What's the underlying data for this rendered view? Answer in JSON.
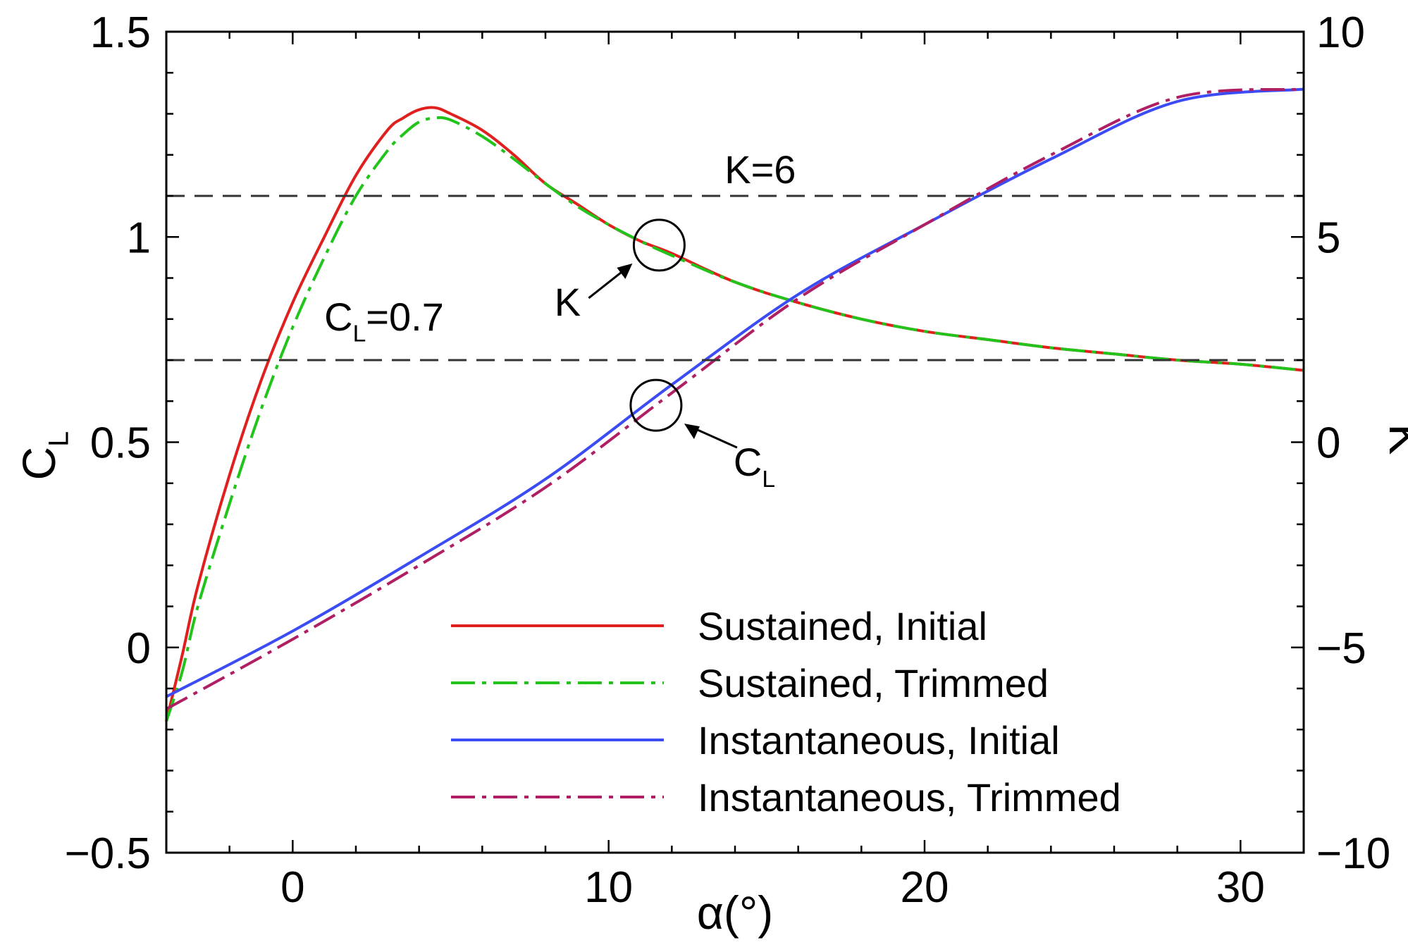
{
  "chart_data": {
    "type": "line",
    "title": "",
    "xlabel": "α(°)",
    "ylabel_left": {
      "main": "C",
      "sub": "L"
    },
    "ylabel_right": "K",
    "xlim": [
      -4,
      32
    ],
    "ylim_left": [
      -0.5,
      1.5
    ],
    "ylim_right": [
      -10,
      10
    ],
    "xticks": [
      0,
      10,
      20,
      30
    ],
    "xtick_labels": [
      "0",
      "10",
      "20",
      "30"
    ],
    "yticks_left": [
      -0.5,
      0,
      0.5,
      1,
      1.5
    ],
    "ytick_labels_left": [
      "−0.5",
      "0",
      "0.5",
      "1",
      "1.5"
    ],
    "yticks_right": [
      -10,
      -5,
      0,
      5,
      10
    ],
    "ytick_labels_right": [
      "−10",
      "−5",
      "0",
      "5",
      "10"
    ],
    "grid": false,
    "legend_position": "bottom-right",
    "series": [
      {
        "name": "Sustained, Initial",
        "axis": "right",
        "color": "#e0201e",
        "dash": "solid",
        "x": [
          -4,
          -3.5,
          -3,
          -2,
          -1,
          0,
          1,
          2,
          3,
          3.5,
          4,
          4.5,
          5,
          6,
          7,
          8,
          9,
          10,
          11,
          12,
          14,
          16,
          18,
          20,
          22,
          24,
          26,
          28,
          30,
          32
        ],
        "y": [
          -6.8,
          -5.2,
          -3.5,
          -0.8,
          1.5,
          3.4,
          5.0,
          6.5,
          7.6,
          7.9,
          8.1,
          8.15,
          8.0,
          7.6,
          7.0,
          6.3,
          5.8,
          5.3,
          4.9,
          4.6,
          3.9,
          3.4,
          3.0,
          2.7,
          2.5,
          2.3,
          2.15,
          2.0,
          1.9,
          1.75
        ]
      },
      {
        "name": "Sustained, Trimmed",
        "axis": "right",
        "color": "#22c41c",
        "dash": "dashdot",
        "x": [
          -4,
          -3.5,
          -3,
          -2,
          -1,
          0,
          1,
          2,
          3,
          3.5,
          4,
          4.5,
          5,
          6,
          7,
          8,
          9,
          10,
          11,
          12,
          14,
          16,
          18,
          20,
          22,
          24,
          26,
          28,
          30,
          32
        ],
        "y": [
          -6.8,
          -5.6,
          -4.0,
          -1.5,
          0.8,
          2.8,
          4.5,
          6.0,
          7.1,
          7.5,
          7.8,
          7.9,
          7.85,
          7.45,
          6.9,
          6.3,
          5.75,
          5.3,
          4.9,
          4.55,
          3.9,
          3.4,
          3.0,
          2.7,
          2.5,
          2.3,
          2.15,
          2.0,
          1.9,
          1.75
        ]
      },
      {
        "name": "Instantaneous, Initial",
        "axis": "left",
        "color": "#3b4cf5",
        "dash": "solid",
        "x": [
          -4,
          0,
          4,
          8,
          12,
          16,
          20,
          24,
          28,
          32
        ],
        "y": [
          -0.12,
          0.04,
          0.22,
          0.41,
          0.64,
          0.86,
          1.03,
          1.19,
          1.33,
          1.36
        ]
      },
      {
        "name": "Instantaneous, Trimmed",
        "axis": "left",
        "color": "#b01e64",
        "dash": "dashdot",
        "x": [
          -4,
          0,
          4,
          8,
          12,
          16,
          20,
          24,
          28,
          32
        ],
        "y": [
          -0.15,
          0.02,
          0.2,
          0.39,
          0.62,
          0.85,
          1.03,
          1.2,
          1.34,
          1.36
        ]
      }
    ],
    "reference_lines": [
      {
        "axis": "left",
        "y": 0.7,
        "label_main": "C",
        "label_sub": "L",
        "label_rest": "=0.7"
      },
      {
        "axis": "right",
        "y": 6,
        "label": "K=6"
      }
    ],
    "annotations": [
      {
        "label": "K",
        "circle_at": {
          "x": 11.6,
          "y_right": 4.8
        }
      },
      {
        "label_main": "C",
        "label_sub": "L",
        "circle_at": {
          "x": 11.5,
          "y_left": 0.59
        }
      }
    ]
  }
}
